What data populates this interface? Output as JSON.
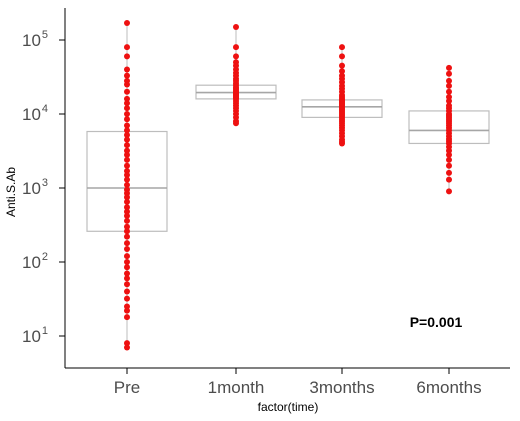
{
  "chart_data": {
    "type": "box",
    "title": "",
    "xlabel": "factor(time)",
    "ylabel": "Anti.S.Ab",
    "yscale": "log10",
    "ylim": [
      5,
      200000
    ],
    "yticks": [
      {
        "value": 10,
        "base": "10",
        "exp": "1"
      },
      {
        "value": 100,
        "base": "10",
        "exp": "2"
      },
      {
        "value": 1000,
        "base": "10",
        "exp": "3"
      },
      {
        "value": 10000,
        "base": "10",
        "exp": "4"
      },
      {
        "value": 100000,
        "base": "10",
        "exp": "5"
      }
    ],
    "categories": [
      "Pre",
      "1month",
      "3months",
      "6months"
    ],
    "boxes": [
      {
        "q1": 260,
        "median": 1000,
        "q3": 5800,
        "min": 7,
        "max": 170000
      },
      {
        "q1": 16000,
        "median": 19500,
        "q3": 24500,
        "min": 7500,
        "max": 150000
      },
      {
        "q1": 9000,
        "median": 12500,
        "q3": 15500,
        "min": 4000,
        "max": 80000
      },
      {
        "q1": 4000,
        "median": 6000,
        "q3": 11000,
        "min": 900,
        "max": 42000
      }
    ],
    "points": [
      [
        170000,
        80000,
        60000,
        40000,
        33000,
        28000,
        25000,
        20000,
        16000,
        14000,
        12000,
        10000,
        8500,
        7000,
        6000,
        5200,
        4500,
        3800,
        3200,
        2800,
        2400,
        2000,
        1700,
        1500,
        1300,
        1100,
        950,
        850,
        750,
        650,
        550,
        480,
        420,
        360,
        300,
        260,
        220,
        180,
        150,
        120,
        100,
        85,
        70,
        60,
        50,
        40,
        32,
        25,
        22,
        18,
        8,
        7
      ],
      [
        150000,
        80000,
        60000,
        50000,
        45000,
        40000,
        36000,
        33000,
        30000,
        28000,
        26000,
        24500,
        23000,
        22000,
        21000,
        20000,
        19500,
        19000,
        18500,
        18000,
        17500,
        17000,
        16500,
        16000,
        15000,
        14000,
        13000,
        12000,
        11000,
        10000,
        9000,
        8000,
        7500
      ],
      [
        80000,
        60000,
        45000,
        38000,
        33000,
        30000,
        27000,
        24000,
        22000,
        20000,
        18000,
        17000,
        16000,
        15500,
        15000,
        14500,
        14000,
        13500,
        13000,
        12500,
        12000,
        11500,
        11000,
        10500,
        10000,
        9500,
        9000,
        8500,
        8000,
        7500,
        7000,
        6500,
        6000,
        5500,
        5000,
        4500,
        4200,
        4000
      ],
      [
        42000,
        35000,
        28000,
        24000,
        20000,
        17000,
        15000,
        13000,
        12000,
        11000,
        10000,
        9500,
        9000,
        8500,
        8000,
        7500,
        7000,
        6500,
        6000,
        5500,
        5000,
        4600,
        4300,
        4000,
        3600,
        3200,
        2800,
        2400,
        2000,
        1600,
        1300,
        900
      ]
    ],
    "point_color": "#ee1111",
    "grid": false,
    "legend": "none",
    "annotation": "P=0.001"
  }
}
